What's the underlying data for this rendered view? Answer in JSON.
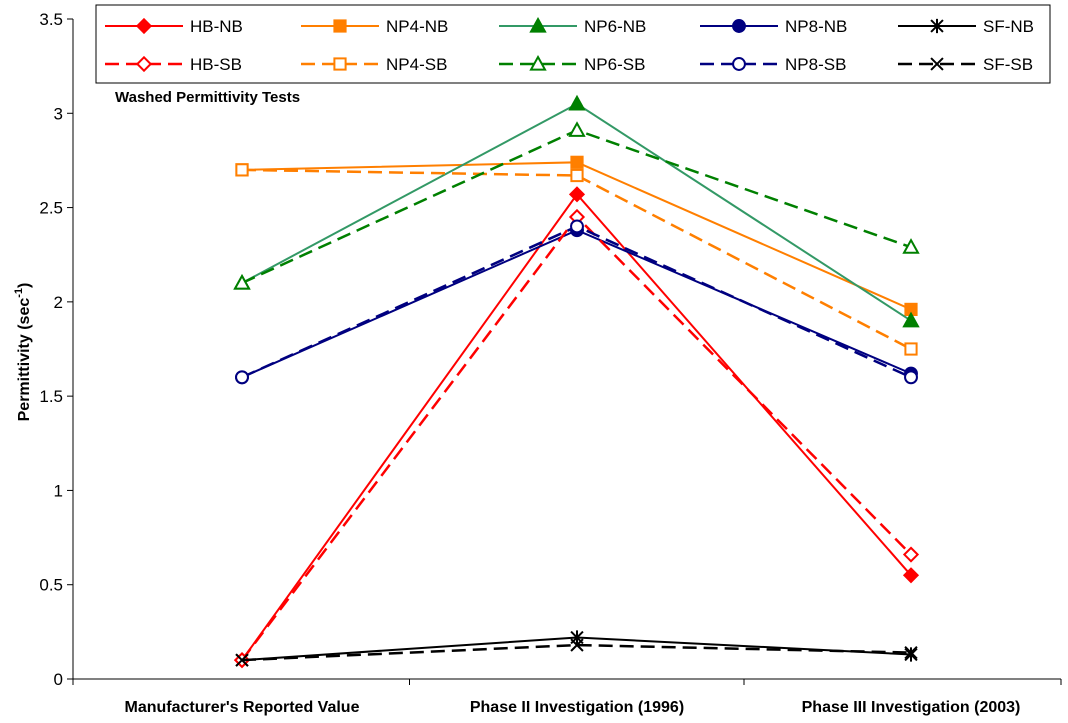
{
  "chart_data": {
    "type": "line",
    "title": "",
    "annotation": "Washed Permittivity Tests",
    "xlabel": "",
    "ylabel": "Permittivity (sec",
    "ylabel_sup": "-1",
    "ylabel_suffix": ")",
    "ylim": [
      0,
      3.5
    ],
    "yticks": [
      "0",
      "0.5",
      "1",
      "1.5",
      "2",
      "2.5",
      "3",
      "3.5"
    ],
    "categories": [
      "Manufacturer's Reported Value",
      "Phase II Investigation (1996)",
      "Phase III Investigation (2003)"
    ],
    "grid": false,
    "legend_position": "top",
    "series": [
      {
        "name": "HB-NB",
        "color": "#ff0000",
        "dash": false,
        "marker": "diamond",
        "filled": true,
        "values": [
          0.1,
          2.57,
          0.55
        ]
      },
      {
        "name": "NP4-NB",
        "color": "#ff7f00",
        "dash": false,
        "marker": "square",
        "filled": true,
        "values": [
          2.7,
          2.74,
          1.96
        ]
      },
      {
        "name": "NP6-NB",
        "color": "#339966",
        "marker_color": "#008000",
        "dash": false,
        "marker": "triangle",
        "filled": true,
        "values": [
          2.1,
          3.05,
          1.9
        ]
      },
      {
        "name": "NP8-NB",
        "color": "#000080",
        "dash": false,
        "marker": "circle",
        "filled": true,
        "values": [
          1.6,
          2.38,
          1.62
        ]
      },
      {
        "name": "SF-NB",
        "color": "#000000",
        "dash": false,
        "marker": "asterisk",
        "filled": true,
        "values": [
          0.1,
          0.22,
          0.13
        ]
      },
      {
        "name": "HB-SB",
        "color": "#ff0000",
        "dash": true,
        "marker": "diamond",
        "filled": false,
        "values": [
          0.1,
          2.45,
          0.66
        ]
      },
      {
        "name": "NP4-SB",
        "color": "#ff7f00",
        "dash": true,
        "marker": "square",
        "filled": false,
        "values": [
          2.7,
          2.67,
          1.75
        ]
      },
      {
        "name": "NP6-SB",
        "color": "#008000",
        "dash": true,
        "marker": "triangle",
        "filled": false,
        "values": [
          2.1,
          2.91,
          2.29
        ]
      },
      {
        "name": "NP8-SB",
        "color": "#000080",
        "dash": true,
        "marker": "circle",
        "filled": false,
        "values": [
          1.6,
          2.4,
          1.6
        ]
      },
      {
        "name": "SF-SB",
        "color": "#000000",
        "dash": true,
        "marker": "x",
        "filled": false,
        "values": [
          0.1,
          0.18,
          0.14
        ]
      }
    ]
  }
}
